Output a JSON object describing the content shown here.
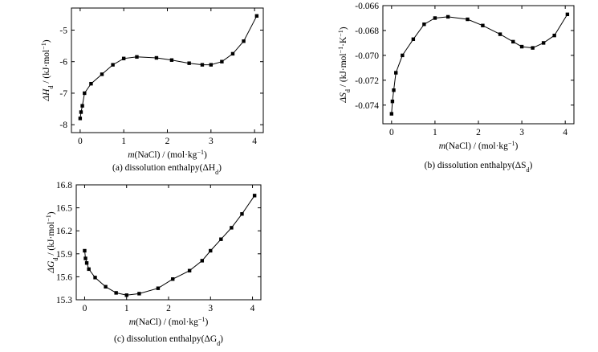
{
  "chart_data": [
    {
      "id": "a",
      "type": "line",
      "caption": "(a) dissolution enthalpy(ΔH",
      "caption_sub": "d",
      "caption_end": ")",
      "xlabel_pre": "m",
      "xlabel": "(NaCl) / (mol·kg",
      "xlabel_sup": "−1",
      "xlabel_end": ")",
      "ylabel_pre": "ΔH",
      "ylabel_sub": "d",
      "ylabel": " / (kJ·mol",
      "ylabel_sup": "−1",
      "ylabel_end": ")",
      "xlim": [
        -0.2,
        4.2
      ],
      "ylim": [
        -8.25,
        -4.3
      ],
      "xticks": [
        0,
        1,
        2,
        3,
        4
      ],
      "xtick_labels": [
        "0",
        "1",
        "2",
        "3",
        "4"
      ],
      "yticks": [
        -8,
        -7,
        -6,
        -5
      ],
      "ytick_labels": [
        "-8",
        "-7",
        "-6",
        "-5"
      ],
      "marker": "square",
      "x": [
        0.0,
        0.02,
        0.05,
        0.1,
        0.25,
        0.5,
        0.75,
        1.0,
        1.3,
        1.75,
        2.1,
        2.5,
        2.8,
        3.0,
        3.25,
        3.5,
        3.75,
        4.05
      ],
      "y": [
        -7.8,
        -7.6,
        -7.4,
        -7.0,
        -6.7,
        -6.4,
        -6.1,
        -5.9,
        -5.85,
        -5.88,
        -5.95,
        -6.05,
        -6.1,
        -6.1,
        -6.0,
        -5.75,
        -5.35,
        -4.55
      ]
    },
    {
      "id": "b",
      "type": "line",
      "caption": "(b) dissolution enthalpy(ΔS",
      "caption_sub": "d",
      "caption_end": ")",
      "xlabel_pre": "m",
      "xlabel": "(NaCl) / (mol·kg",
      "xlabel_sup": "−1",
      "xlabel_end": ")",
      "ylabel_pre": "ΔS",
      "ylabel_sub": "d",
      "ylabel": " / (kJ·mol",
      "ylabel_sup": "−1",
      "ylabel_mid": "·K",
      "ylabel_sup2": "−1",
      "ylabel_end": ")",
      "xlim": [
        -0.2,
        4.2
      ],
      "ylim": [
        -0.0755,
        -0.066
      ],
      "xticks": [
        0,
        1,
        2,
        3,
        4
      ],
      "xtick_labels": [
        "0",
        "1",
        "2",
        "3",
        "4"
      ],
      "yticks": [
        -0.074,
        -0.072,
        -0.07,
        -0.068,
        -0.066
      ],
      "ytick_labels": [
        "-0.074",
        "-0.072",
        "-0.070",
        "-0.068",
        "-0.066"
      ],
      "marker": "square",
      "x": [
        0.0,
        0.02,
        0.05,
        0.1,
        0.25,
        0.5,
        0.75,
        1.0,
        1.3,
        1.75,
        2.1,
        2.5,
        2.8,
        3.0,
        3.25,
        3.5,
        3.75,
        4.05
      ],
      "y": [
        -0.0747,
        -0.0737,
        -0.0728,
        -0.0714,
        -0.07,
        -0.0687,
        -0.0675,
        -0.067,
        -0.0669,
        -0.0671,
        -0.0676,
        -0.0683,
        -0.0689,
        -0.0693,
        -0.0694,
        -0.069,
        -0.0684,
        -0.0667
      ]
    },
    {
      "id": "c",
      "type": "line",
      "caption": "(c) dissolution enthalpy(ΔG",
      "caption_sub": "d",
      "caption_end": ")",
      "xlabel_pre": "m",
      "xlabel": "(NaCl) / (mol·kg",
      "xlabel_sup": "−1",
      "xlabel_end": ")",
      "ylabel_pre": "ΔG",
      "ylabel_sub": "d",
      "ylabel": " / (kJ·mol",
      "ylabel_sup": "−1",
      "ylabel_end": ")",
      "xlim": [
        -0.2,
        4.2
      ],
      "ylim": [
        15.3,
        16.8
      ],
      "xticks": [
        0,
        1,
        2,
        3,
        4
      ],
      "xtick_labels": [
        "0",
        "1",
        "2",
        "3",
        "4"
      ],
      "yticks": [
        15.3,
        15.6,
        15.9,
        16.2,
        16.5,
        16.8
      ],
      "ytick_labels": [
        "15.3",
        "15.6",
        "15.9",
        "16.2",
        "16.5",
        "16.8"
      ],
      "marker": "square",
      "x": [
        0.0,
        0.02,
        0.05,
        0.1,
        0.25,
        0.5,
        0.75,
        1.0,
        1.3,
        1.75,
        2.1,
        2.5,
        2.8,
        3.0,
        3.25,
        3.5,
        3.75,
        4.05
      ],
      "y": [
        15.94,
        15.84,
        15.78,
        15.7,
        15.59,
        15.47,
        15.39,
        15.36,
        15.38,
        15.45,
        15.57,
        15.68,
        15.81,
        15.94,
        16.09,
        16.24,
        16.42,
        16.66
      ]
    }
  ]
}
